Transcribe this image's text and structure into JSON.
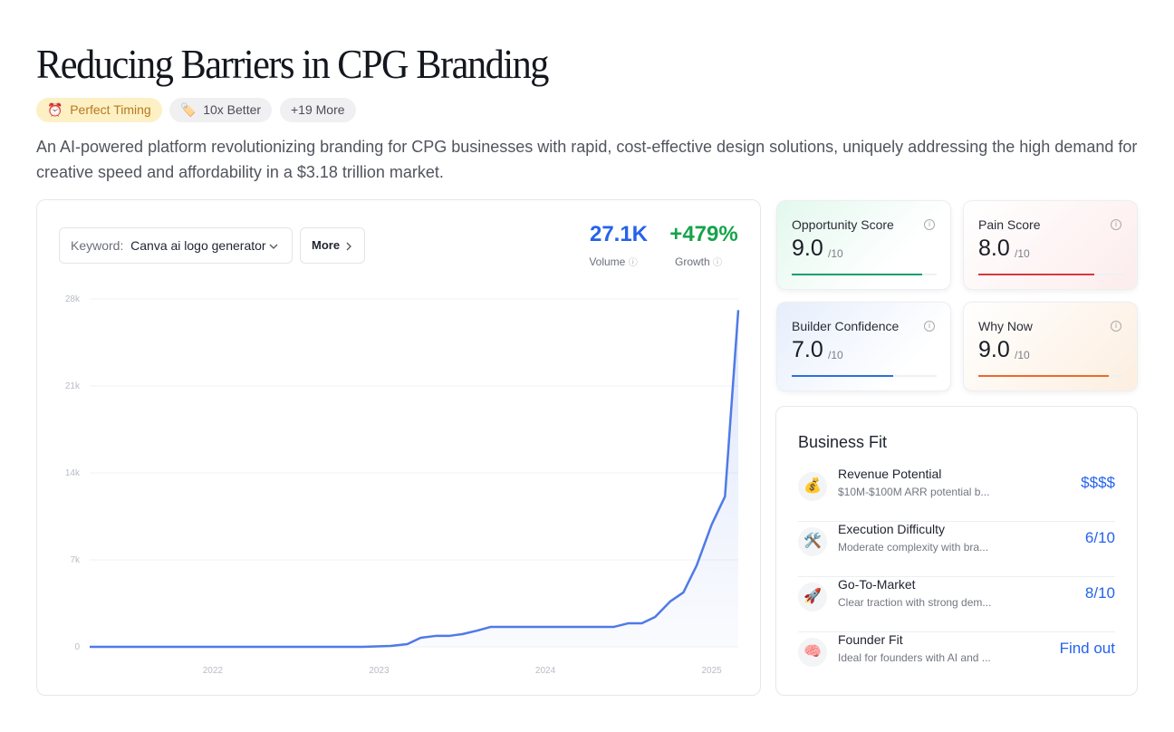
{
  "header": {
    "title": "Reducing Barriers in CPG Branding",
    "tags": [
      {
        "icon": "⏰",
        "label": "Perfect Timing"
      },
      {
        "icon": "🏷️",
        "label": "10x Better"
      },
      {
        "icon": "",
        "label": "+19 More"
      }
    ],
    "description": "An AI-powered platform revolutionizing branding for CPG businesses with rapid, cost-effective design solutions, uniquely addressing the high demand for creative speed and affordability in a $3.18 trillion market."
  },
  "trend": {
    "keyword_label": "Keyword:",
    "keyword": "Canva ai logo generator",
    "more_button": "More",
    "stats": [
      {
        "value": "27.1K",
        "label": "Volume"
      },
      {
        "value": "+479%",
        "label": "Growth"
      }
    ],
    "chart_data": {
      "type": "area",
      "x": [
        2021.26,
        2021.51,
        2021.76,
        2022.17,
        2022.52,
        2022.9,
        2023.07,
        2023.17,
        2023.25,
        2023.34,
        2023.42,
        2023.5,
        2023.59,
        2023.67,
        2023.78,
        2023.99,
        2024.21,
        2024.41,
        2024.5,
        2024.58,
        2024.66,
        2024.75,
        2024.83,
        2024.91,
        2025.0,
        2025.08,
        2025.16
      ],
      "series": [
        {
          "color": "#4f7ae6",
          "values": [
            0,
            0,
            0,
            0,
            0,
            0,
            70,
            220,
            730,
            880,
            880,
            1020,
            1310,
            1600,
            1600,
            1600,
            1600,
            1600,
            1900,
            1900,
            2410,
            3650,
            4380,
            6560,
            9840,
            12100,
            27100
          ]
        }
      ],
      "xlim": [
        2021.26,
        2025.16
      ],
      "xticks": [
        2022,
        2023,
        2024,
        2025
      ],
      "ylim": [
        0,
        28000
      ],
      "yticks": [
        0,
        {
          "value": 7000,
          "label": "7k"
        },
        {
          "value": 14000,
          "label": "14k"
        },
        {
          "value": 21000,
          "label": "21k"
        },
        {
          "value": 28000,
          "label": "28k"
        }
      ],
      "grid": true
    }
  },
  "scores": [
    {
      "name": "Opportunity Score",
      "score": 9,
      "score_label": "9.0",
      "denominator": "/10",
      "color": "#13a06c"
    },
    {
      "name": "Pain Score",
      "score": 8,
      "score_label": "8.0",
      "denominator": "/10",
      "color": "#d9363e"
    },
    {
      "name": "Builder Confidence",
      "score": 7,
      "score_label": "7.0",
      "denominator": "/10",
      "color": "#2f6fd6"
    },
    {
      "name": "Why Now",
      "score": 9,
      "score_label": "9.0",
      "denominator": "/10",
      "color": "#ea6a2a"
    }
  ],
  "business_fit": {
    "title": "Business Fit",
    "items": [
      {
        "icon": "💰",
        "name": "Revenue Potential",
        "description": "$10M-$100M ARR potential b...",
        "value": "$$$$"
      },
      {
        "icon": "🛠️",
        "name": "Execution Difficulty",
        "description": "Moderate complexity with bra...",
        "value": "6/10"
      },
      {
        "icon": "🚀",
        "name": "Go-To-Market",
        "description": "Clear traction with strong dem...",
        "value": "8/10"
      },
      {
        "icon": "🧠",
        "name": "Founder Fit",
        "description": "Ideal for founders with AI and ...",
        "value": "Find out"
      }
    ]
  }
}
